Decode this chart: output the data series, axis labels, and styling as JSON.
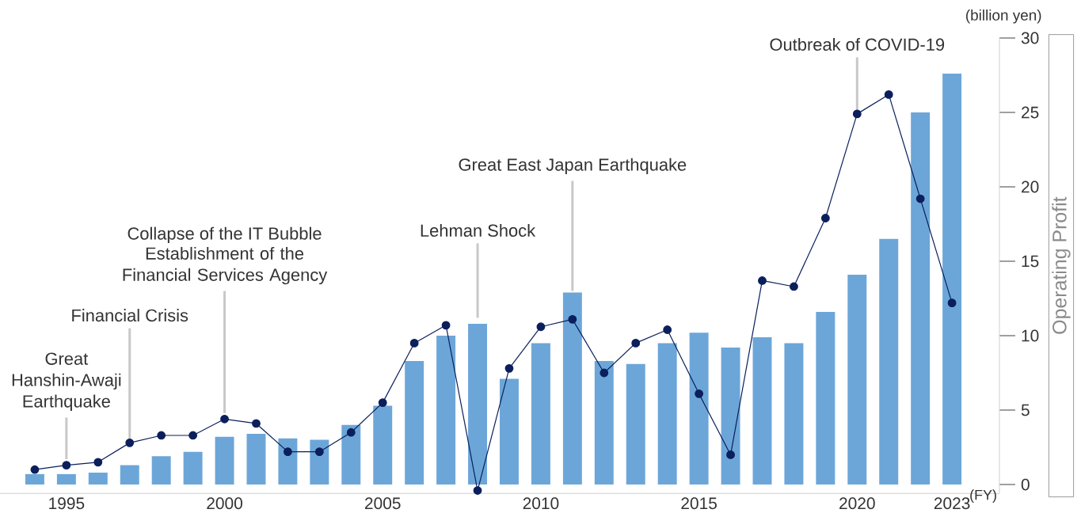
{
  "chart_data": {
    "type": "bar",
    "x": [
      1994,
      1995,
      1996,
      1997,
      1998,
      1999,
      2000,
      2001,
      2002,
      2003,
      2004,
      2005,
      2006,
      2007,
      2008,
      2009,
      2010,
      2011,
      2012,
      2013,
      2014,
      2015,
      2016,
      2017,
      2018,
      2019,
      2020,
      2021,
      2022,
      2023
    ],
    "series": [
      {
        "color": "#6ca6d9",
        "values": [
          0.7,
          0.7,
          0.8,
          1.3,
          1.9,
          2.2,
          3.2,
          3.4,
          3.1,
          3.0,
          4.0,
          5.3,
          8.3,
          10.0,
          10.8,
          7.1,
          9.5,
          12.9,
          8.3,
          8.1,
          9.5,
          10.2,
          9.2,
          9.9,
          9.5,
          11.6,
          14.1,
          16.5,
          25.0,
          27.6
        ]
      },
      {
        "type": "line",
        "color": "#0b1f5c",
        "values": [
          1.0,
          1.3,
          1.5,
          2.8,
          3.3,
          3.3,
          4.4,
          4.1,
          2.2,
          2.2,
          3.5,
          5.5,
          9.5,
          10.7,
          -0.4,
          7.8,
          10.6,
          11.1,
          7.5,
          9.5,
          10.4,
          6.1,
          2.0,
          13.7,
          13.3,
          17.9,
          24.9,
          26.2,
          19.2,
          12.2
        ]
      }
    ],
    "marker": "circle",
    "xlim": [
      1992.9,
      2024.5
    ],
    "ylim": [
      -0.6,
      30
    ],
    "xticks": [
      1995,
      2000,
      2005,
      2010,
      2015,
      2020,
      2023
    ],
    "yticks": [
      0,
      5,
      10,
      15,
      20,
      25,
      30
    ],
    "xlabel": "(FY)",
    "ylabel": "Operating Profit",
    "annotations": [
      {
        "text": "Great Hanshin-Awaji Earthquake",
        "x": 1995,
        "y": 1.3
      },
      {
        "text": "Financial Crisis",
        "x": 1997,
        "y": 2.8
      },
      {
        "text": "Establishment of the Financial Services Agency",
        "x": 2000,
        "y": 4.4
      },
      "Collapse of the IT Bubble",
      {
        "text": "Lehman Shock",
        "x": 2008,
        "y": 10.8
      },
      {
        "text": "Great East Japan Earthquake",
        "x": 2011,
        "y": 12.9
      },
      {
        "text": "Outbreak of COVID-19",
        "x": 2020,
        "y": 24.9
      },
      "(billion yen)"
    ]
  }
}
